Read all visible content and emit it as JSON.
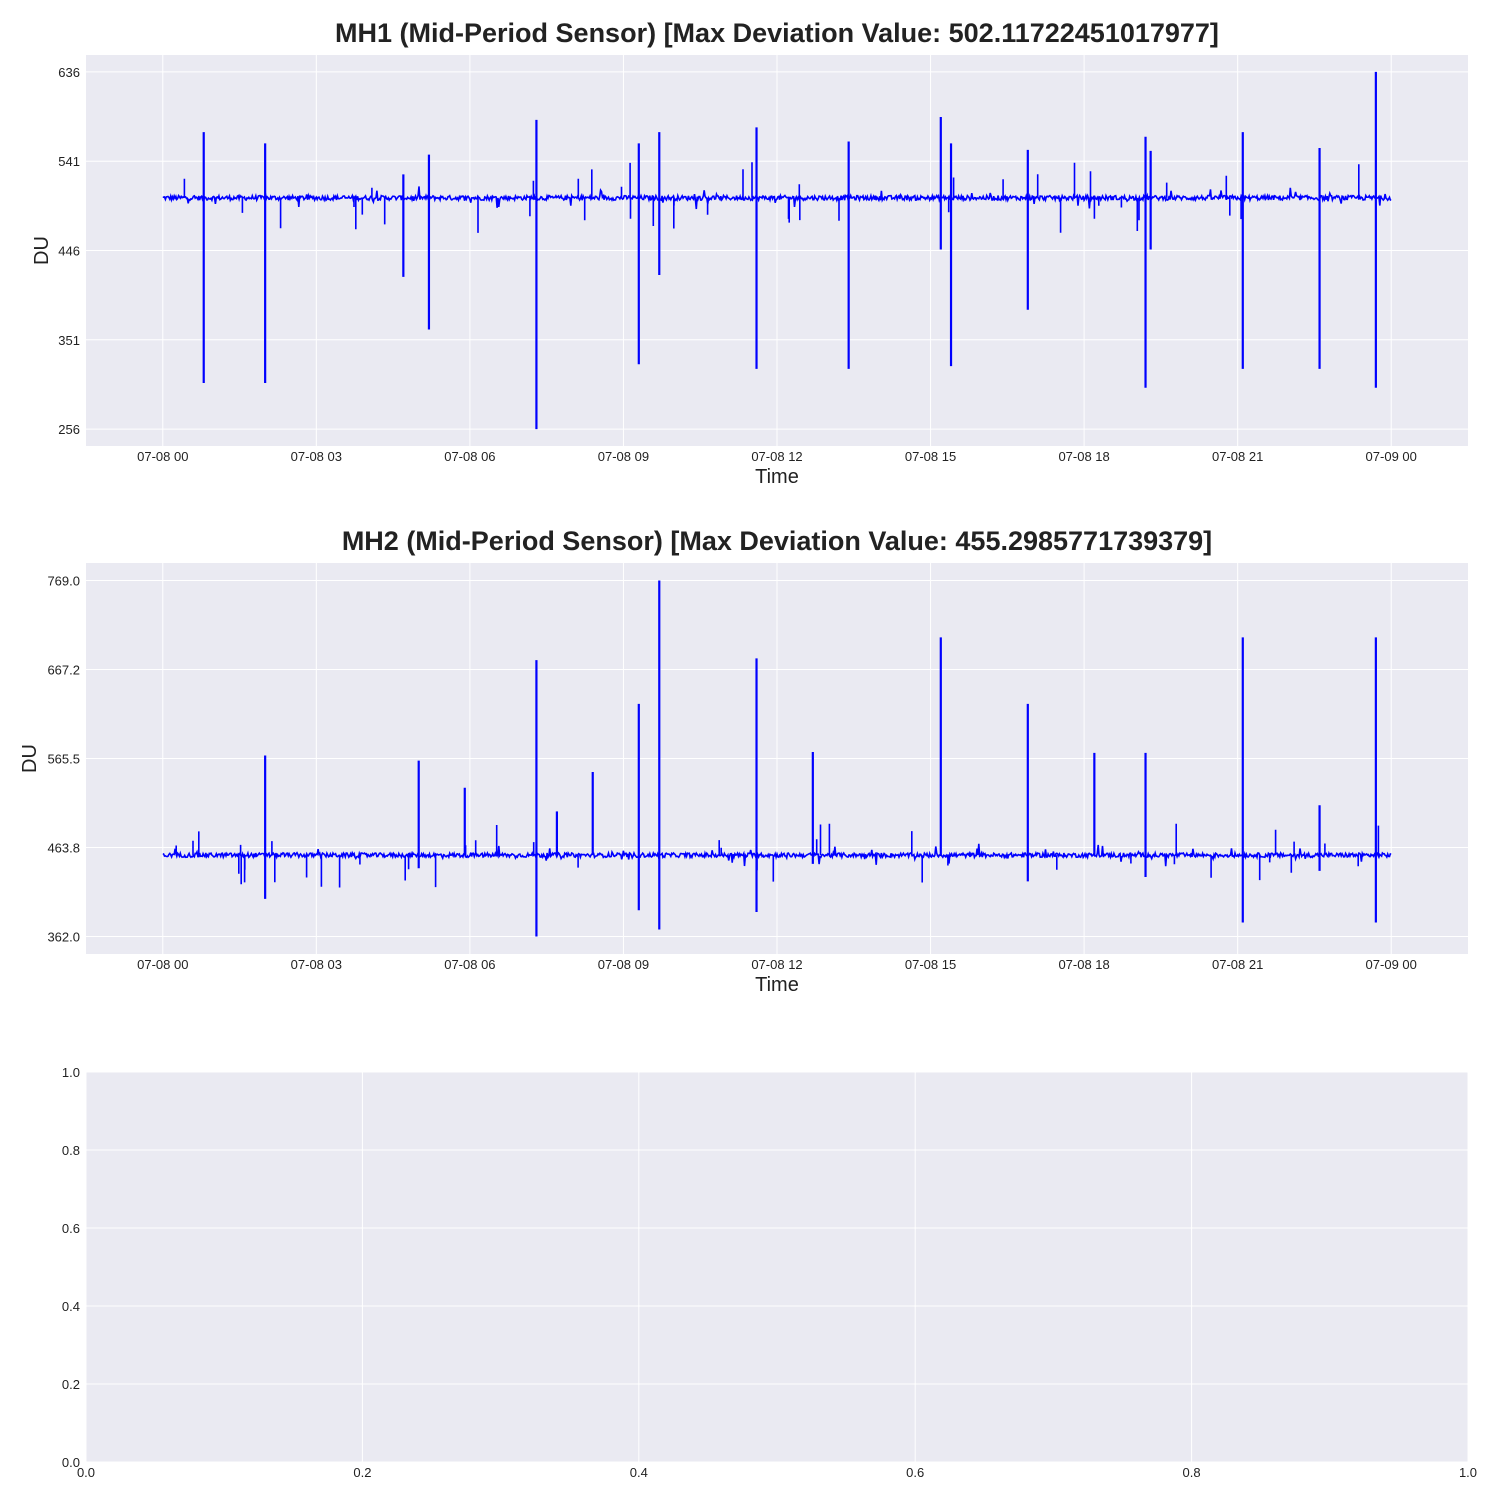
{
  "colors": {
    "line": "#0000ff",
    "panel_bg": "#eaeaf2",
    "grid": "#ffffff",
    "text": "#222222"
  },
  "chart_data": [
    {
      "type": "line",
      "title": "MH1 (Mid-Period Sensor)     [Max Deviation Value: 502.11722451017977]",
      "xlabel": "Time",
      "ylabel": "DU",
      "grid": true,
      "x_ticks": [
        "07-08 00",
        "07-08 03",
        "07-08 06",
        "07-08 09",
        "07-08 12",
        "07-08 15",
        "07-08 18",
        "07-08 21",
        "07-09 00"
      ],
      "y_ticks": [
        "256",
        "351",
        "446",
        "541",
        "636"
      ],
      "y_tick_values": [
        256,
        351,
        446,
        541,
        636
      ],
      "ylim": [
        238,
        654
      ],
      "xlim_hours": [
        -1.5,
        25.5
      ],
      "series": [
        {
          "baseline": 502,
          "spikes": [
            [
              0.8,
              572,
              305
            ],
            [
              2.0,
              560,
              305
            ],
            [
              4.7,
              527,
              418
            ],
            [
              5.2,
              548,
              362
            ],
            [
              7.3,
              585,
              256
            ],
            [
              9.3,
              560,
              325
            ],
            [
              9.7,
              572,
              420
            ],
            [
              11.6,
              577,
              320
            ],
            [
              13.4,
              562,
              320
            ],
            [
              15.2,
              588,
              447
            ],
            [
              15.4,
              560,
              323
            ],
            [
              16.9,
              553,
              383
            ],
            [
              19.2,
              567,
              300
            ],
            [
              19.3,
              552,
              447
            ],
            [
              21.1,
              572,
              320
            ],
            [
              22.6,
              555,
              320
            ],
            [
              23.7,
              636,
              300
            ]
          ]
        }
      ]
    },
    {
      "type": "line",
      "title": "MH2 (Mid-Period Sensor)     [Max Deviation Value: 455.2985771739379]",
      "xlabel": "Time",
      "ylabel": "DU",
      "grid": true,
      "x_ticks": [
        "07-08 00",
        "07-08 03",
        "07-08 06",
        "07-08 09",
        "07-08 12",
        "07-08 15",
        "07-08 18",
        "07-08 21",
        "07-09 00"
      ],
      "y_ticks": [
        "362.0",
        "463.8",
        "565.5",
        "667.2",
        "769.0"
      ],
      "y_tick_values": [
        362.0,
        463.8,
        565.5,
        667.2,
        769.0
      ],
      "ylim": [
        342,
        789
      ],
      "xlim_hours": [
        -1.5,
        25.5
      ],
      "series": [
        {
          "baseline": 455,
          "spikes": [
            [
              2.0,
              569,
              405
            ],
            [
              5.0,
              563,
              440
            ],
            [
              5.9,
              532,
              455
            ],
            [
              7.3,
              678,
              362
            ],
            [
              7.7,
              505,
              455
            ],
            [
              8.4,
              550,
              455
            ],
            [
              9.3,
              628,
              392
            ],
            [
              9.7,
              769,
              370
            ],
            [
              11.6,
              680,
              390
            ],
            [
              12.7,
              573,
              445
            ],
            [
              15.2,
              704,
              455
            ],
            [
              16.9,
              628,
              425
            ],
            [
              18.2,
              572,
              455
            ],
            [
              19.2,
              572,
              430
            ],
            [
              21.1,
              704,
              378
            ],
            [
              22.6,
              512,
              437
            ],
            [
              23.7,
              704,
              378
            ]
          ]
        }
      ]
    },
    {
      "type": "line",
      "title": "",
      "xlabel": "",
      "ylabel": "",
      "grid": true,
      "x_ticks": [
        "0.0",
        "0.2",
        "0.4",
        "0.6",
        "0.8",
        "1.0"
      ],
      "y_ticks": [
        "0.0",
        "0.2",
        "0.4",
        "0.6",
        "0.8",
        "1.0"
      ],
      "xlim": [
        0,
        1
      ],
      "ylim": [
        0,
        1
      ],
      "series": []
    }
  ]
}
